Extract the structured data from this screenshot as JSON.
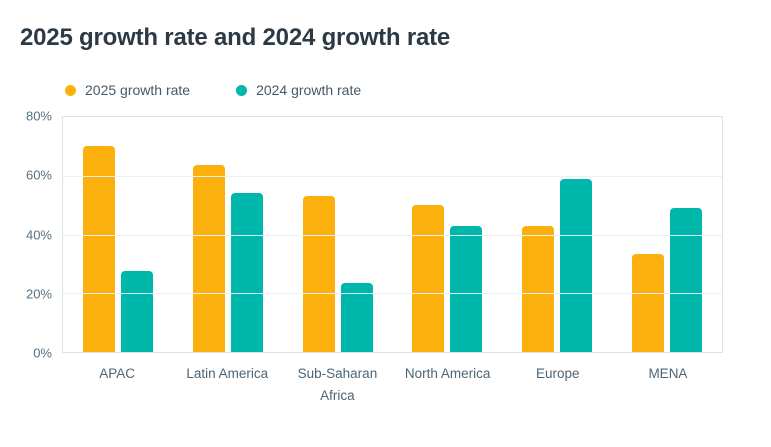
{
  "title": "2025 growth rate and 2024 growth rate",
  "colors": {
    "series_2025": "#FCB00D",
    "series_2024": "#00B7AC",
    "gridline": "#E9F1F2",
    "plot_border": "#D9E4EA",
    "title_text": "#2D3A46",
    "axis_text": "#56707F"
  },
  "chart_data": {
    "type": "bar",
    "title": "2025 growth rate and 2024 growth rate",
    "categories": [
      "APAC",
      "Latin America",
      "Sub-Saharan Africa",
      "North America",
      "Europe",
      "MENA"
    ],
    "series": [
      {
        "name": "2025 growth rate",
        "color": "#FCB00D",
        "values": [
          70,
          63.5,
          53,
          50,
          43,
          33.5
        ]
      },
      {
        "name": "2024 growth rate",
        "color": "#00B7AC",
        "values": [
          27.5,
          54,
          23.5,
          43,
          59,
          49
        ]
      }
    ],
    "xlabel": "",
    "ylabel": "",
    "ylim": [
      0,
      80
    ],
    "y_ticks": [
      "0%",
      "20%",
      "40%",
      "60%",
      "80%"
    ],
    "grid": true,
    "legend_position": "top-left"
  }
}
